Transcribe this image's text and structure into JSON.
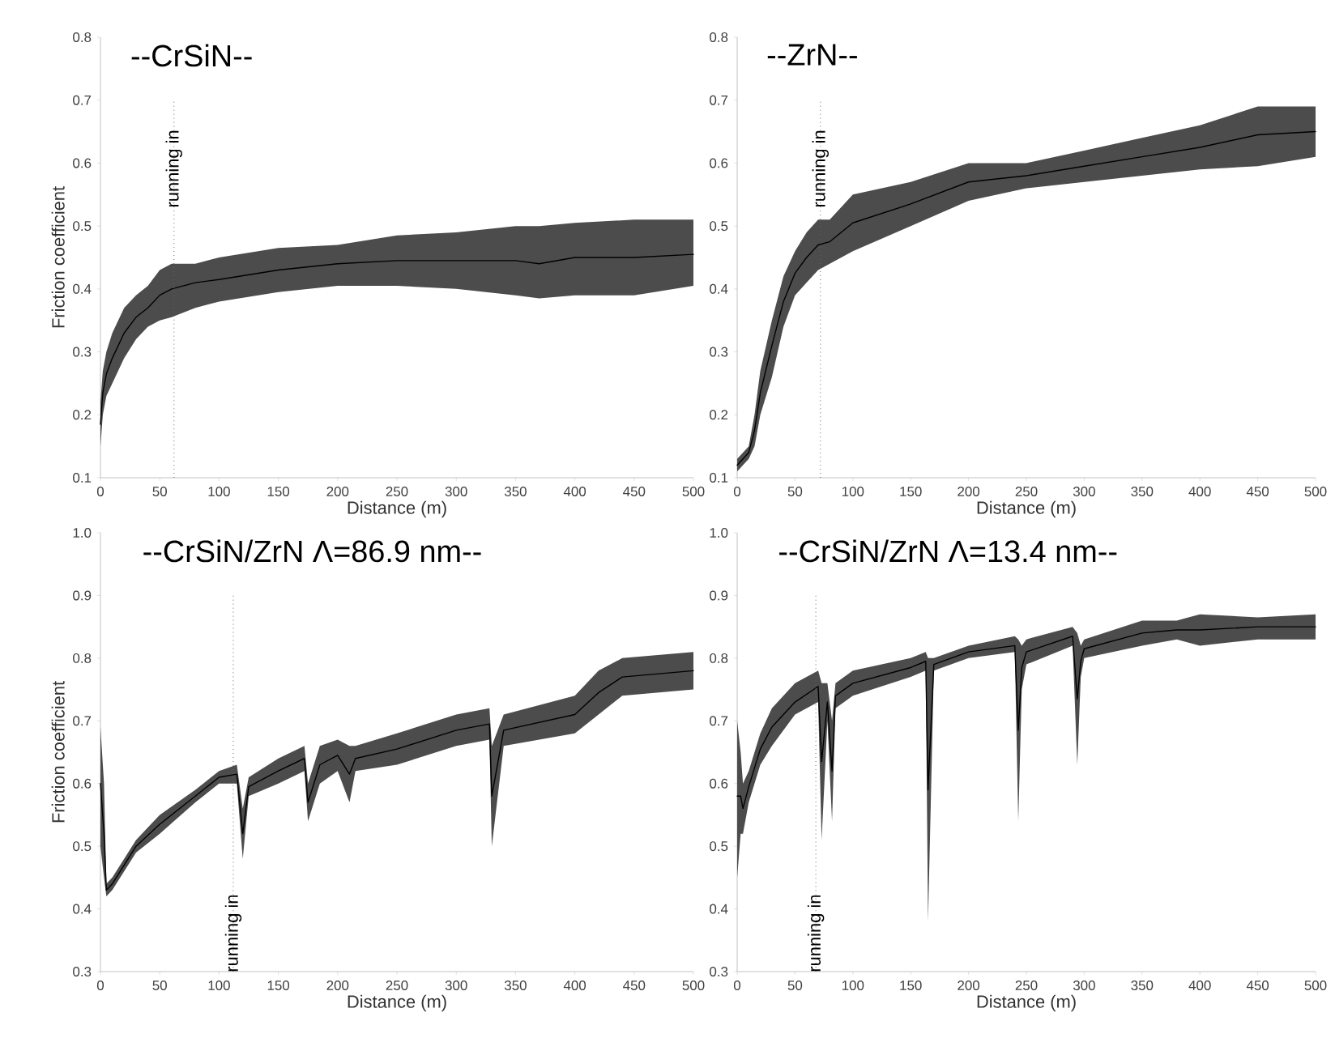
{
  "chart_data": [
    {
      "type": "line",
      "title": "--CrSiN--",
      "xlabel": "Distance (m)",
      "ylabel": "Friction coefficient",
      "x": [
        0,
        2,
        5,
        10,
        20,
        30,
        40,
        50,
        60,
        80,
        100,
        150,
        200,
        250,
        300,
        350,
        370,
        400,
        450,
        500
      ],
      "series": [
        {
          "color": "#000000",
          "values": [
            0.185,
            0.235,
            0.265,
            0.29,
            0.33,
            0.355,
            0.37,
            0.39,
            0.4,
            0.41,
            0.415,
            0.43,
            0.44,
            0.445,
            0.445,
            0.445,
            0.44,
            0.45,
            0.45,
            0.455
          ],
          "lower": [
            0.15,
            0.2,
            0.23,
            0.25,
            0.29,
            0.32,
            0.34,
            0.35,
            0.355,
            0.37,
            0.38,
            0.395,
            0.405,
            0.405,
            0.4,
            0.39,
            0.385,
            0.39,
            0.39,
            0.405
          ],
          "upper": [
            0.22,
            0.27,
            0.3,
            0.33,
            0.37,
            0.39,
            0.405,
            0.43,
            0.44,
            0.44,
            0.45,
            0.465,
            0.47,
            0.485,
            0.49,
            0.5,
            0.5,
            0.505,
            0.51,
            0.51
          ]
        }
      ],
      "xlim": [
        0,
        500
      ],
      "ylim": [
        0.1,
        0.8
      ],
      "xticks": [
        0,
        50,
        100,
        150,
        200,
        250,
        300,
        350,
        400,
        450,
        500
      ],
      "yticks": [
        0.1,
        0.2,
        0.3,
        0.4,
        0.5,
        0.6,
        0.7,
        0.8
      ],
      "ref_lines": [
        {
          "axis": "x",
          "value": 62,
          "label": "running in",
          "line_style": "dotted"
        }
      ]
    },
    {
      "type": "line",
      "title": "--ZrN--",
      "xlabel": "Distance (m)",
      "x": [
        0,
        5,
        10,
        15,
        20,
        30,
        40,
        50,
        60,
        70,
        80,
        100,
        150,
        200,
        250,
        300,
        350,
        400,
        450,
        500
      ],
      "series": [
        {
          "color": "#000000",
          "values": [
            0.12,
            0.13,
            0.14,
            0.175,
            0.235,
            0.31,
            0.38,
            0.425,
            0.45,
            0.47,
            0.475,
            0.505,
            0.535,
            0.57,
            0.58,
            0.595,
            0.61,
            0.625,
            0.645,
            0.65
          ],
          "lower": [
            0.11,
            0.12,
            0.13,
            0.15,
            0.2,
            0.26,
            0.34,
            0.39,
            0.41,
            0.43,
            0.44,
            0.46,
            0.5,
            0.54,
            0.56,
            0.57,
            0.58,
            0.59,
            0.595,
            0.61
          ],
          "upper": [
            0.13,
            0.14,
            0.15,
            0.2,
            0.27,
            0.35,
            0.42,
            0.46,
            0.49,
            0.51,
            0.51,
            0.55,
            0.57,
            0.6,
            0.6,
            0.62,
            0.64,
            0.66,
            0.69,
            0.69
          ]
        }
      ],
      "xlim": [
        0,
        500
      ],
      "ylim": [
        0.1,
        0.8
      ],
      "xticks": [
        0,
        50,
        100,
        150,
        200,
        250,
        300,
        350,
        400,
        450,
        500
      ],
      "yticks": [
        0.1,
        0.2,
        0.3,
        0.4,
        0.5,
        0.6,
        0.7,
        0.8
      ],
      "ref_lines": [
        {
          "axis": "x",
          "value": 72,
          "label": "running in",
          "line_style": "dotted"
        }
      ]
    },
    {
      "type": "line",
      "title": "--CrSiN/ZrN Λ=86.9 nm--",
      "xlabel": "Distance (m)",
      "ylabel": "Friction coefficient",
      "x": [
        0,
        3,
        5,
        10,
        20,
        30,
        50,
        80,
        100,
        115,
        120,
        125,
        150,
        172,
        175,
        185,
        200,
        210,
        215,
        250,
        300,
        328,
        330,
        340,
        400,
        420,
        440,
        500
      ],
      "series": [
        {
          "color": "#000000",
          "values": [
            0.6,
            0.52,
            0.43,
            0.44,
            0.47,
            0.5,
            0.535,
            0.58,
            0.61,
            0.615,
            0.52,
            0.595,
            0.62,
            0.64,
            0.57,
            0.63,
            0.645,
            0.615,
            0.64,
            0.655,
            0.685,
            0.695,
            0.58,
            0.685,
            0.71,
            0.745,
            0.77,
            0.78
          ],
          "lower": [
            0.5,
            0.45,
            0.42,
            0.43,
            0.46,
            0.49,
            0.52,
            0.57,
            0.6,
            0.6,
            0.48,
            0.58,
            0.6,
            0.62,
            0.54,
            0.6,
            0.62,
            0.57,
            0.62,
            0.63,
            0.66,
            0.67,
            0.5,
            0.66,
            0.68,
            0.71,
            0.74,
            0.75
          ],
          "upper": [
            0.69,
            0.6,
            0.44,
            0.45,
            0.48,
            0.51,
            0.55,
            0.59,
            0.62,
            0.63,
            0.56,
            0.61,
            0.64,
            0.66,
            0.6,
            0.66,
            0.67,
            0.66,
            0.66,
            0.68,
            0.71,
            0.72,
            0.66,
            0.71,
            0.74,
            0.78,
            0.8,
            0.81
          ]
        }
      ],
      "xlim": [
        0,
        500
      ],
      "ylim": [
        0.3,
        1.0
      ],
      "xticks": [
        0,
        50,
        100,
        150,
        200,
        250,
        300,
        350,
        400,
        450,
        500
      ],
      "yticks": [
        0.3,
        0.4,
        0.5,
        0.6,
        0.7,
        0.8,
        0.9,
        {
          "value": 1.0,
          "label": "1.0"
        }
      ],
      "ref_lines": [
        {
          "axis": "x",
          "value": 112,
          "label": "running in",
          "line_style": "dotted"
        }
      ]
    },
    {
      "type": "line",
      "title": "--CrSiN/ZrN Λ=13.4 nm--",
      "xlabel": "Distance (m)",
      "x": [
        0,
        3,
        5,
        10,
        20,
        30,
        50,
        70,
        73,
        78,
        82,
        85,
        100,
        150,
        163,
        165,
        170,
        200,
        240,
        243,
        246,
        250,
        290,
        294,
        297,
        300,
        350,
        380,
        400,
        450,
        500
      ],
      "series": [
        {
          "color": "#000000",
          "values": [
            0.58,
            0.58,
            0.56,
            0.595,
            0.655,
            0.69,
            0.73,
            0.755,
            0.635,
            0.73,
            0.62,
            0.74,
            0.76,
            0.785,
            0.795,
            0.59,
            0.79,
            0.81,
            0.82,
            0.685,
            0.785,
            0.81,
            0.835,
            0.735,
            0.795,
            0.815,
            0.84,
            0.845,
            0.845,
            0.85,
            0.85
          ],
          "lower": [
            0.45,
            0.52,
            0.52,
            0.57,
            0.63,
            0.66,
            0.71,
            0.73,
            0.51,
            0.7,
            0.54,
            0.72,
            0.74,
            0.77,
            0.78,
            0.38,
            0.78,
            0.8,
            0.81,
            0.54,
            0.75,
            0.79,
            0.82,
            0.63,
            0.77,
            0.8,
            0.82,
            0.83,
            0.82,
            0.83,
            0.83
          ],
          "upper": [
            0.7,
            0.65,
            0.6,
            0.62,
            0.68,
            0.72,
            0.76,
            0.78,
            0.76,
            0.76,
            0.7,
            0.76,
            0.78,
            0.8,
            0.81,
            0.8,
            0.8,
            0.82,
            0.835,
            0.83,
            0.82,
            0.83,
            0.85,
            0.84,
            0.82,
            0.83,
            0.86,
            0.86,
            0.87,
            0.865,
            0.87
          ]
        }
      ],
      "xlim": [
        0,
        500
      ],
      "ylim": [
        0.3,
        1.0
      ],
      "xticks": [
        0,
        50,
        100,
        150,
        200,
        250,
        300,
        350,
        400,
        450,
        500
      ],
      "yticks": [
        0.3,
        0.4,
        0.5,
        0.6,
        0.7,
        0.8,
        0.9,
        {
          "value": 1.0,
          "label": "1.0"
        }
      ],
      "ref_lines": [
        {
          "axis": "x",
          "value": 68,
          "label": "running in",
          "line_style": "dotted"
        }
      ]
    }
  ]
}
